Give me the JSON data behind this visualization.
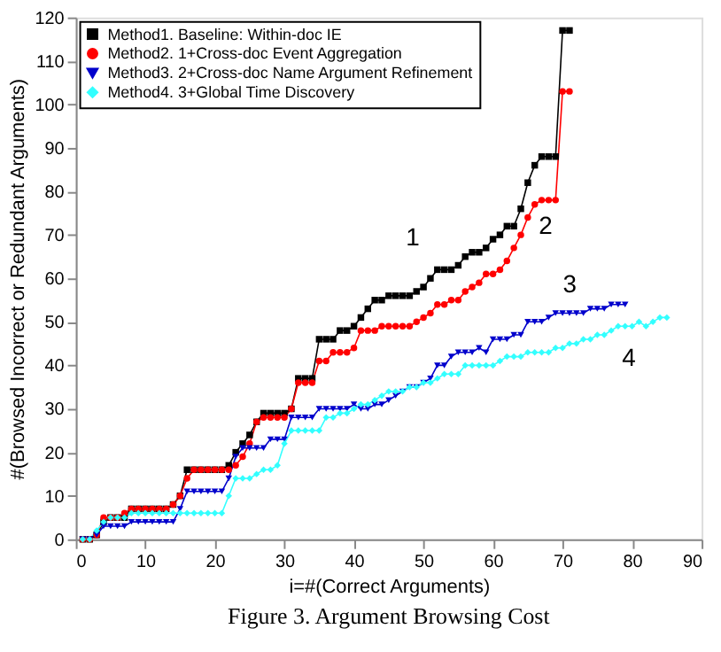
{
  "chart_data": {
    "type": "line",
    "xlabel": "i=#(Correct Arguments)",
    "ylabel": "#(Browsed Incorrect or Redundant Arguments)",
    "xlim": [
      0,
      90
    ],
    "xticks": [
      0,
      10,
      20,
      30,
      40,
      50,
      60,
      70,
      80,
      90
    ],
    "ylim": [
      0,
      120
    ],
    "yticks": [
      0,
      10,
      20,
      30,
      40,
      50,
      60,
      70,
      80,
      90,
      100,
      110,
      120
    ],
    "grid": false,
    "legend": "top left",
    "line_style": "solid",
    "series": [
      {
        "name": "Method1. Baseline: Within-doc IE",
        "color": "#000000",
        "marker": "square",
        "x": [
          1,
          2,
          3,
          4,
          5,
          6,
          7,
          8,
          9,
          10,
          11,
          12,
          13,
          14,
          15,
          16,
          17,
          18,
          19,
          20,
          21,
          22,
          23,
          24,
          25,
          26,
          27,
          28,
          29,
          30,
          31,
          32,
          33,
          34,
          35,
          36,
          37,
          38,
          39,
          40,
          41,
          42,
          43,
          44,
          45,
          46,
          47,
          48,
          49,
          50,
          51,
          52,
          53,
          54,
          55,
          56,
          57,
          58,
          59,
          60,
          61,
          62,
          63,
          64,
          65,
          66,
          67,
          68,
          69,
          70,
          71
        ],
        "values": [
          0,
          0,
          1,
          4,
          5,
          5,
          5,
          7,
          7,
          7,
          7,
          7,
          7,
          8,
          10,
          16,
          16,
          16,
          16,
          16,
          16,
          17,
          20,
          22,
          24,
          27,
          29,
          29,
          29,
          29,
          30,
          37,
          37,
          37,
          46,
          46,
          46,
          48,
          48,
          49,
          51,
          53,
          55,
          55,
          56,
          56,
          56,
          56,
          57,
          58,
          60,
          62,
          62,
          62,
          63,
          65,
          66,
          66,
          67,
          69,
          70,
          72,
          72,
          76,
          82,
          86,
          88,
          88,
          88,
          117,
          117
        ]
      },
      {
        "name": "Method2. 1+Cross-doc Event Aggregation",
        "color": "#ff0000",
        "marker": "circle",
        "x": [
          1,
          2,
          3,
          4,
          5,
          6,
          7,
          8,
          9,
          10,
          11,
          12,
          13,
          14,
          15,
          16,
          17,
          18,
          19,
          20,
          21,
          22,
          23,
          24,
          25,
          26,
          27,
          28,
          29,
          30,
          31,
          32,
          33,
          34,
          35,
          36,
          37,
          38,
          39,
          40,
          41,
          42,
          43,
          44,
          45,
          46,
          47,
          48,
          49,
          50,
          51,
          52,
          53,
          54,
          55,
          56,
          57,
          58,
          59,
          60,
          61,
          62,
          63,
          64,
          65,
          66,
          67,
          68,
          69,
          70,
          71
        ],
        "values": [
          0,
          0,
          1,
          5,
          5,
          5,
          6,
          7,
          7,
          7,
          7,
          7,
          7,
          8,
          10,
          14,
          16,
          16,
          16,
          16,
          16,
          16,
          17,
          19,
          22,
          27,
          28,
          28,
          28,
          28,
          30,
          36,
          36,
          36,
          41,
          41,
          43,
          43,
          43,
          44,
          48,
          48,
          48,
          49,
          49,
          49,
          49,
          49,
          50,
          51,
          52,
          54,
          54,
          55,
          55,
          57,
          58,
          59,
          61,
          61,
          62,
          64,
          67,
          70,
          74,
          77,
          78,
          78,
          78,
          103,
          103
        ]
      },
      {
        "name": "Method3. 2+Cross-doc Name Argument Refinement",
        "color": "#0000cc",
        "marker": "triangle",
        "x": [
          1,
          2,
          3,
          4,
          5,
          6,
          7,
          8,
          9,
          10,
          11,
          12,
          13,
          14,
          15,
          16,
          17,
          18,
          19,
          20,
          21,
          22,
          23,
          24,
          25,
          26,
          27,
          28,
          29,
          30,
          31,
          32,
          33,
          34,
          35,
          36,
          37,
          38,
          39,
          40,
          41,
          42,
          43,
          44,
          45,
          46,
          47,
          48,
          49,
          50,
          51,
          52,
          53,
          54,
          55,
          56,
          57,
          58,
          59,
          60,
          61,
          62,
          63,
          64,
          65,
          66,
          67,
          68,
          69,
          70,
          71,
          72,
          73,
          74,
          75,
          76,
          77,
          78,
          79
        ],
        "values": [
          0,
          0,
          1,
          3,
          3,
          3,
          3,
          4,
          4,
          4,
          4,
          4,
          4,
          4,
          7,
          11,
          11,
          11,
          11,
          11,
          11,
          14,
          19,
          21,
          21,
          21,
          21,
          23,
          23,
          23,
          28,
          28,
          28,
          28,
          30,
          30,
          30,
          30,
          30,
          31,
          30,
          30,
          31,
          31,
          32,
          33,
          34,
          35,
          35,
          36,
          37,
          40,
          40,
          42,
          43,
          43,
          43,
          44,
          43,
          46,
          46,
          46,
          47,
          47,
          50,
          50,
          50,
          51,
          52,
          52,
          52,
          52,
          52,
          53,
          53,
          53,
          54,
          54,
          54
        ]
      },
      {
        "name": "Method4. 3+Global Time Discovery",
        "color": "#33ffff",
        "marker": "diamond",
        "x": [
          1,
          2,
          3,
          4,
          5,
          6,
          7,
          8,
          9,
          10,
          11,
          12,
          13,
          14,
          15,
          16,
          17,
          18,
          19,
          20,
          21,
          22,
          23,
          24,
          25,
          26,
          27,
          28,
          29,
          30,
          31,
          32,
          33,
          34,
          35,
          36,
          37,
          38,
          39,
          40,
          41,
          42,
          43,
          44,
          45,
          46,
          47,
          48,
          49,
          50,
          51,
          52,
          53,
          54,
          55,
          56,
          57,
          58,
          59,
          60,
          61,
          62,
          63,
          64,
          65,
          66,
          67,
          68,
          69,
          70,
          71,
          72,
          73,
          74,
          75,
          76,
          77,
          78,
          79,
          80,
          81,
          82,
          83,
          84,
          85
        ],
        "values": [
          0,
          0,
          2,
          4,
          5,
          5,
          5,
          6,
          6,
          6,
          6,
          6,
          6,
          6,
          6,
          6,
          6,
          6,
          6,
          6,
          6,
          10,
          14,
          14,
          14,
          15,
          16,
          16,
          17,
          22,
          25,
          25,
          25,
          25,
          25,
          28,
          28,
          29,
          29,
          30,
          31,
          31,
          32,
          33,
          34,
          34,
          34,
          35,
          35,
          36,
          36,
          37,
          38,
          38,
          38,
          40,
          40,
          40,
          40,
          40,
          41,
          42,
          42,
          42,
          43,
          43,
          43,
          43,
          44,
          44,
          45,
          45,
          46,
          46,
          47,
          47,
          48,
          49,
          49,
          49,
          50,
          49,
          50,
          51,
          51
        ]
      }
    ],
    "annotations": [
      {
        "text": "1",
        "x": 52,
        "y": 62
      },
      {
        "text": "2",
        "x": 63,
        "y": 67
      },
      {
        "text": "3",
        "x": 69,
        "y": 52
      },
      {
        "text": "4",
        "x": 77,
        "y": 48
      },
      "Figure 3. Argument Browsing Cost"
    ]
  }
}
